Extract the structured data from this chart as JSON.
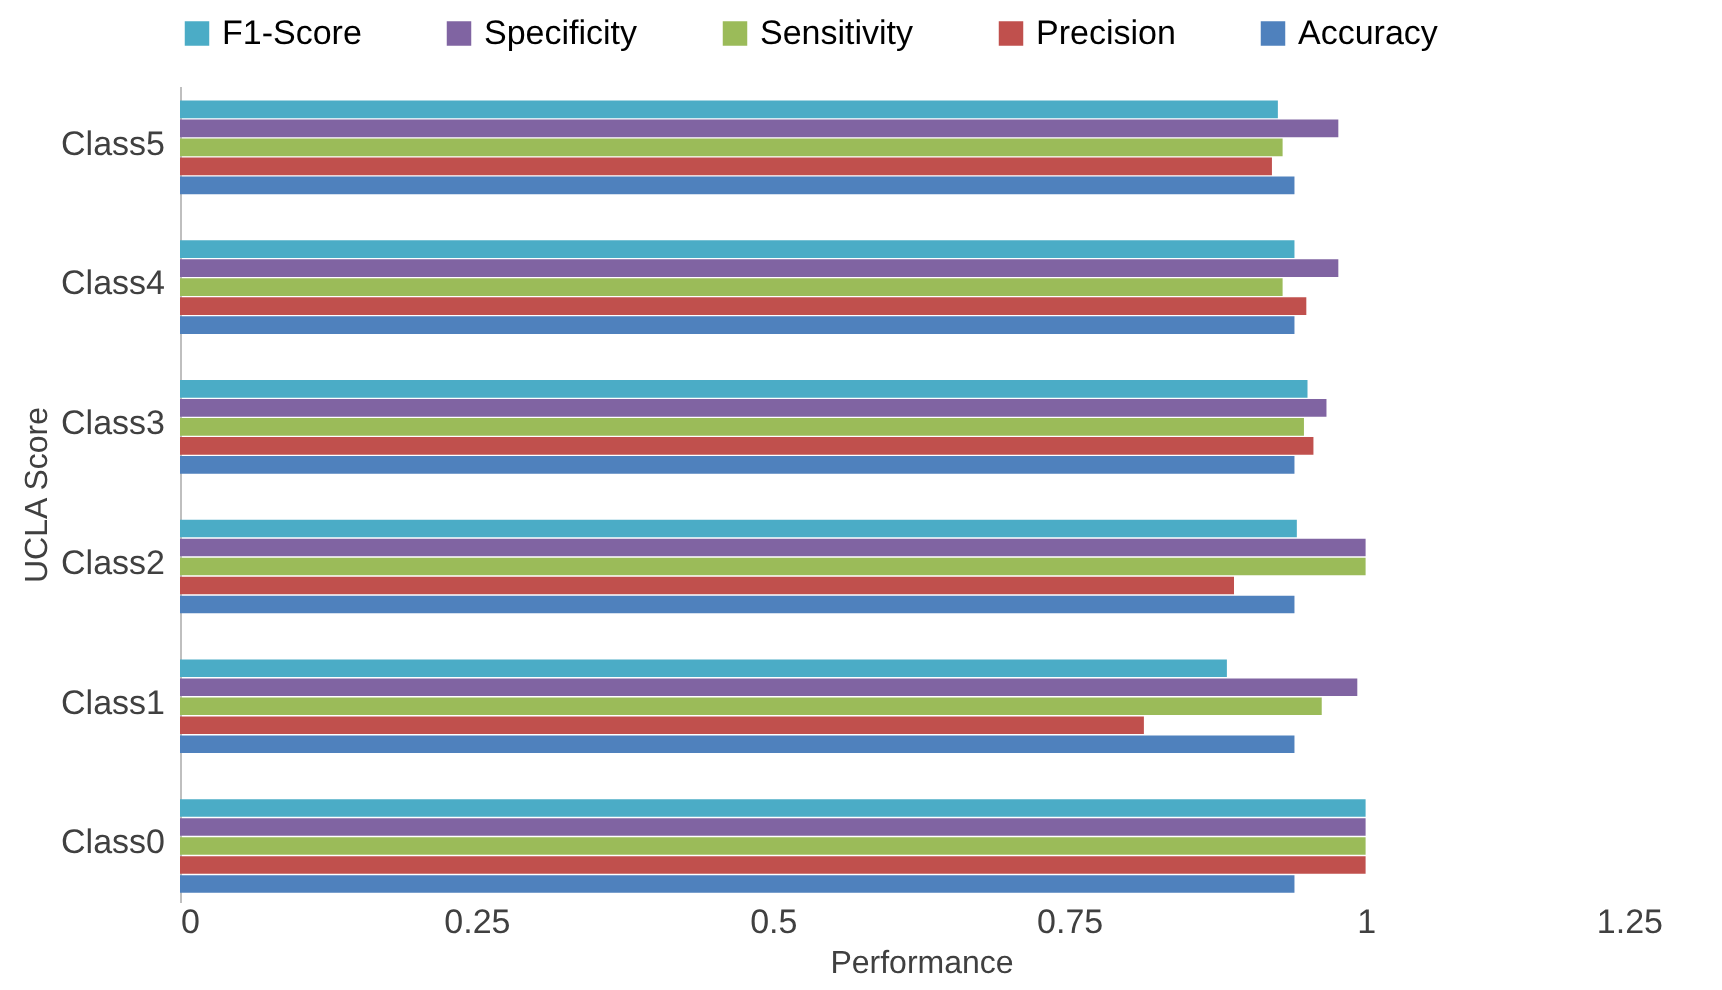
{
  "chart_data": {
    "type": "bar",
    "orientation": "horizontal",
    "xlabel": "Performance",
    "ylabel": "UCLA Score",
    "categories": [
      "Class5",
      "Class4",
      "Class3",
      "Class2",
      "Class1",
      "Class0"
    ],
    "series": [
      {
        "name": "F1-Score",
        "color": "#4bacc6",
        "values": [
          0.926,
          0.94,
          0.951,
          0.942,
          0.883,
          1.0
        ]
      },
      {
        "name": "Specificity",
        "color": "#8064a2",
        "values": [
          0.977,
          0.977,
          0.967,
          1.0,
          0.993,
          1.0
        ]
      },
      {
        "name": "Sensitivity",
        "color": "#9bbb59",
        "values": [
          0.93,
          0.93,
          0.948,
          1.0,
          0.963,
          1.0
        ]
      },
      {
        "name": "Precision",
        "color": "#c0504d",
        "values": [
          0.921,
          0.95,
          0.956,
          0.889,
          0.813,
          1.0
        ]
      },
      {
        "name": "Accuracy",
        "color": "#4f81bd",
        "values": [
          0.94,
          0.94,
          0.94,
          0.94,
          0.94,
          0.94
        ]
      }
    ],
    "xlim": [
      0,
      1.25
    ],
    "xticks": [
      0,
      0.25,
      0.5,
      0.75,
      1,
      1.25
    ],
    "grid": false,
    "legend": "top"
  }
}
